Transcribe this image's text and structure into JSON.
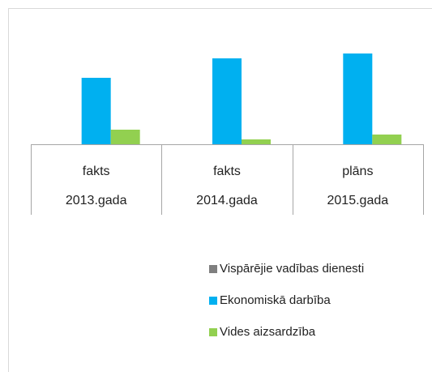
{
  "chart_data": {
    "type": "bar",
    "categories": [
      [
        "fakts",
        "2013.gada"
      ],
      [
        "fakts",
        "2014.gada"
      ],
      [
        "plāns",
        "2015.gada"
      ]
    ],
    "series": [
      {
        "name": "Vispārējie vadības dienesti",
        "color": "#7f7f7f",
        "values": [
          0,
          0,
          0
        ]
      },
      {
        "name": "Ekonomiskā darbība",
        "color": "#00b0f0",
        "values": [
          82,
          106,
          112
        ]
      },
      {
        "name": "Vides aizsardzība",
        "color": "#92d050",
        "values": [
          18,
          6,
          12
        ]
      }
    ],
    "ylim": [
      0,
      160
    ]
  }
}
